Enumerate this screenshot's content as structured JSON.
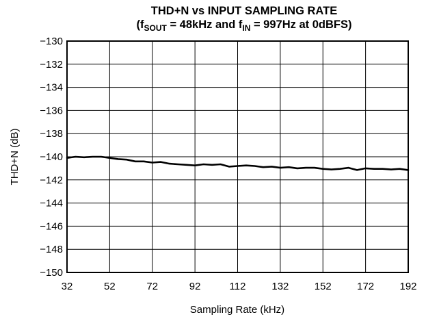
{
  "chart_data": {
    "type": "line",
    "title": {
      "line1": "THD+N vs INPUT SAMPLING RATE",
      "line2_prefix": "(f",
      "line2_sub1": "SOUT",
      "line2_mid": " = 48kHz and f",
      "line2_sub2": "IN",
      "line2_suffix": " = 997Hz at 0dBFS)"
    },
    "xlabel": "Sampling Rate (kHz)",
    "ylabel": "THD+N (dB)",
    "xlim": [
      32,
      192
    ],
    "ylim": [
      -150,
      -130
    ],
    "x_ticks": [
      "32",
      "52",
      "72",
      "92",
      "112",
      "132",
      "152",
      "172",
      "192"
    ],
    "y_ticks": [
      "−130",
      "−132",
      "−134",
      "−136",
      "−138",
      "−140",
      "−142",
      "−144",
      "−146",
      "−148",
      "−150"
    ],
    "grid": true,
    "series": [
      {
        "x": [
          32,
          36,
          40,
          44,
          48,
          52,
          56,
          60,
          64,
          68,
          72,
          76,
          80,
          84,
          88,
          92,
          96,
          100,
          104,
          108,
          112,
          116,
          120,
          124,
          128,
          132,
          136,
          140,
          144,
          148,
          152,
          156,
          160,
          164,
          168,
          172,
          176,
          180,
          184,
          188,
          192
        ],
        "y": [
          -140.1,
          -140.0,
          -140.05,
          -140.0,
          -140.0,
          -140.1,
          -140.2,
          -140.25,
          -140.4,
          -140.4,
          -140.5,
          -140.45,
          -140.6,
          -140.65,
          -140.7,
          -140.75,
          -140.65,
          -140.7,
          -140.65,
          -140.85,
          -140.8,
          -140.75,
          -140.8,
          -140.9,
          -140.85,
          -140.95,
          -140.9,
          -141.0,
          -140.95,
          -140.95,
          -141.05,
          -141.1,
          -141.05,
          -140.95,
          -141.15,
          -141.0,
          -141.05,
          -141.05,
          -141.1,
          -141.05,
          -141.15
        ]
      }
    ]
  }
}
